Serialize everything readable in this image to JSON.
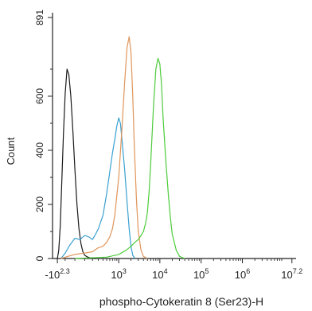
{
  "chart_data": {
    "type": "line",
    "title": "",
    "xlabel": "phospho-Cytokeratin 8 (Ser23)-H",
    "ylabel": "Count",
    "x_scale": "biexponential",
    "ylim": [
      0,
      891
    ],
    "y_ticks": [
      "0",
      "200",
      "400",
      "600",
      "891"
    ],
    "x_ticks": [
      {
        "base": "-10",
        "exp": "2.3",
        "value": -200
      },
      {
        "base": "10",
        "exp": "3",
        "value": 1000
      },
      {
        "base": "10",
        "exp": "4",
        "value": 10000
      },
      {
        "base": "10",
        "exp": "5",
        "value": 100000
      },
      {
        "base": "10",
        "exp": "6",
        "value": 1000000
      },
      {
        "base": "10",
        "exp": "7.2",
        "value": 15848932
      }
    ],
    "series": [
      {
        "color": "#1a1a1a",
        "x": [
          -200,
          -180,
          -160,
          -140,
          -120,
          -100,
          -80,
          -60,
          -40,
          -20,
          0,
          20,
          40,
          60,
          80,
          100,
          130,
          160,
          200,
          260
        ],
        "y": [
          0,
          30,
          120,
          280,
          460,
          610,
          700,
          680,
          600,
          470,
          330,
          200,
          110,
          55,
          25,
          12,
          6,
          3,
          1,
          0
        ]
      },
      {
        "color": "#3aa0d0",
        "x": [
          -150,
          -100,
          -50,
          0,
          50,
          100,
          150,
          200,
          250,
          300,
          400,
          500,
          600,
          700,
          800,
          900,
          1000,
          1100,
          1200,
          1400,
          1600,
          1800,
          2000,
          2200,
          2500
        ],
        "y": [
          0,
          20,
          50,
          75,
          70,
          85,
          80,
          70,
          90,
          110,
          160,
          240,
          320,
          390,
          440,
          490,
          520,
          500,
          440,
          330,
          210,
          110,
          45,
          12,
          0
        ]
      },
      {
        "color": "#e0955a",
        "x": [
          -150,
          -50,
          0,
          100,
          200,
          300,
          400,
          500,
          600,
          700,
          800,
          1000,
          1200,
          1400,
          1600,
          1800,
          2000,
          2200,
          2400,
          2700,
          3000,
          3500,
          4000,
          5000
        ],
        "y": [
          0,
          10,
          15,
          20,
          25,
          40,
          45,
          60,
          80,
          110,
          160,
          300,
          480,
          650,
          780,
          820,
          760,
          600,
          420,
          220,
          100,
          30,
          8,
          0
        ]
      },
      {
        "color": "#4ccc3a",
        "x": [
          0,
          500,
          1000,
          1500,
          2000,
          2500,
          3000,
          3500,
          4000,
          4500,
          5000,
          5500,
          6000,
          7000,
          8000,
          9000,
          10000,
          11000,
          12000,
          14000,
          16000,
          18000,
          20000,
          25000,
          30000,
          40000
        ],
        "y": [
          0,
          5,
          15,
          30,
          45,
          60,
          70,
          85,
          100,
          130,
          170,
          250,
          350,
          560,
          700,
          740,
          720,
          640,
          520,
          360,
          240,
          150,
          90,
          30,
          8,
          0
        ]
      }
    ]
  }
}
